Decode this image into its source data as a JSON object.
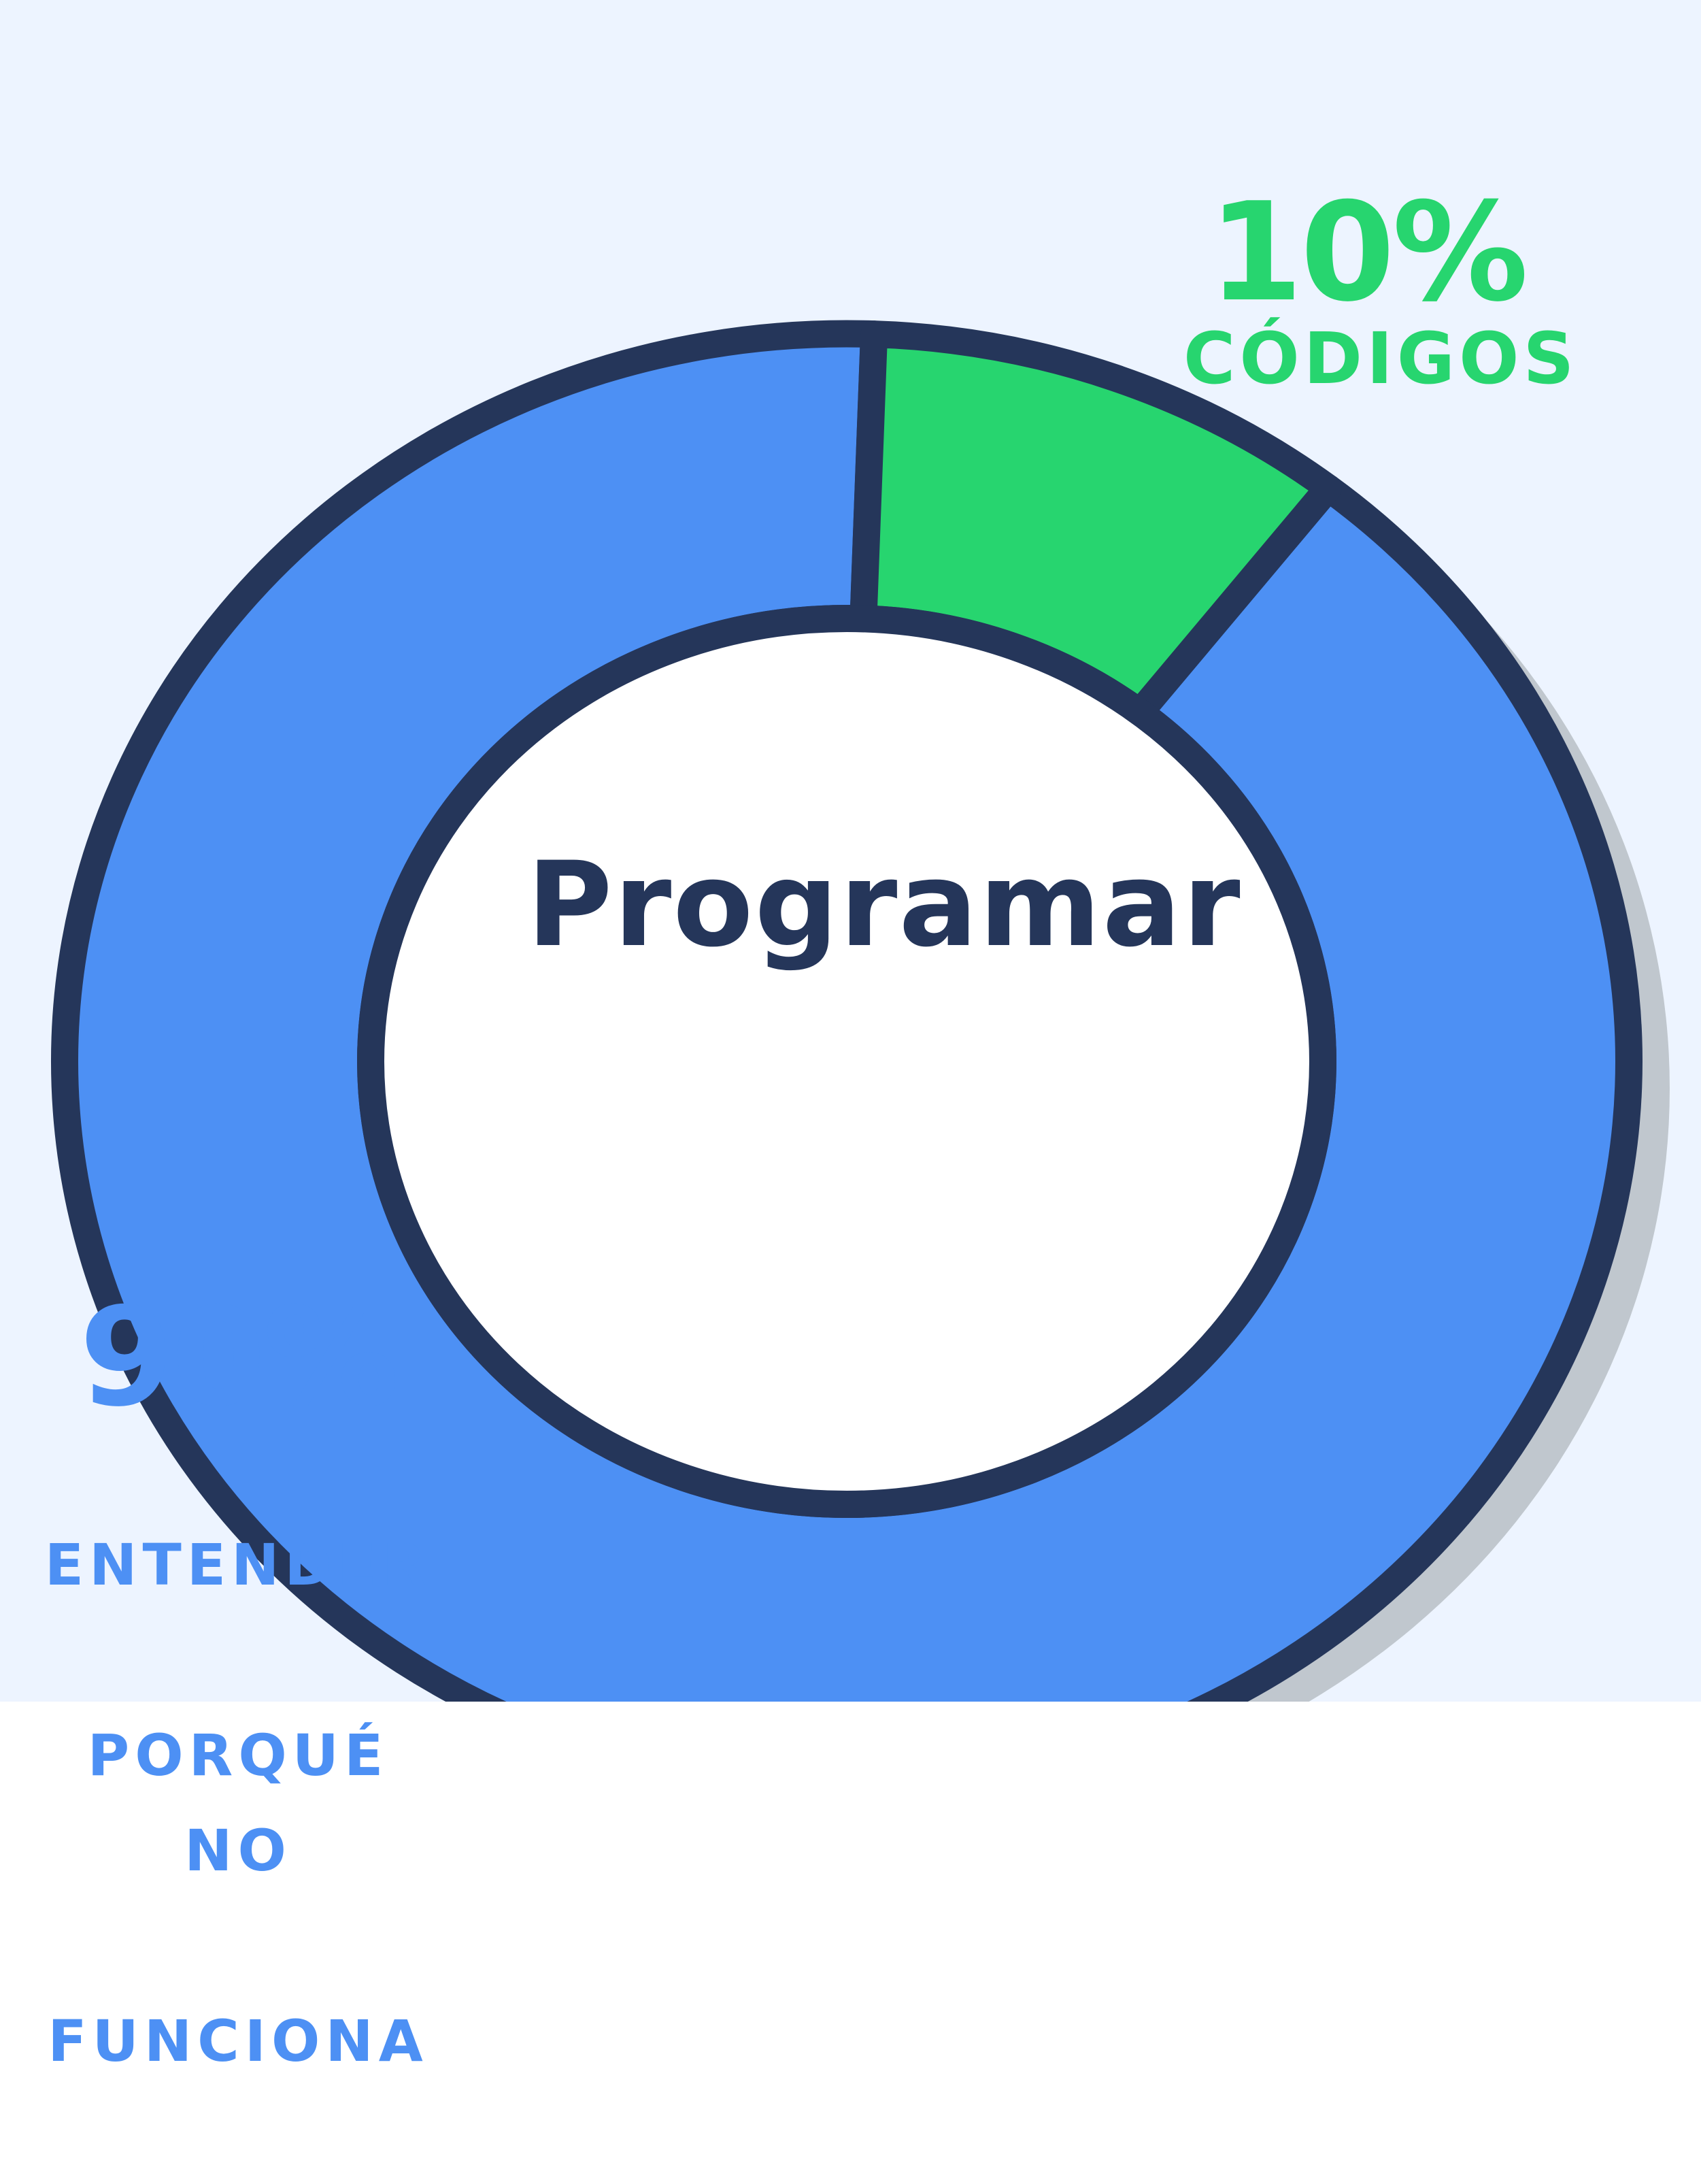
{
  "colors": {
    "background": "#edf4ff",
    "outline": "#25365a",
    "shadow": "#c0c7ce",
    "center": "#ffffff",
    "blue": "#4d90f4",
    "green": "#27d56f"
  },
  "chart_data": {
    "type": "donut",
    "center_label": "Programar",
    "series": [
      {
        "name": "CÓDIGOS",
        "value": 10,
        "display_value": "10%",
        "label_lines": [
          "CÓDIGOS"
        ],
        "color": "#27d56f"
      },
      {
        "name": "ENTENDER PORQUÉ NO FUNCIONA",
        "value": 90,
        "display_value": "90%",
        "label_lines": [
          "ENTENDER",
          "PORQUÉ NO",
          "FUNCIONA"
        ],
        "color": "#4d90f4"
      }
    ]
  }
}
